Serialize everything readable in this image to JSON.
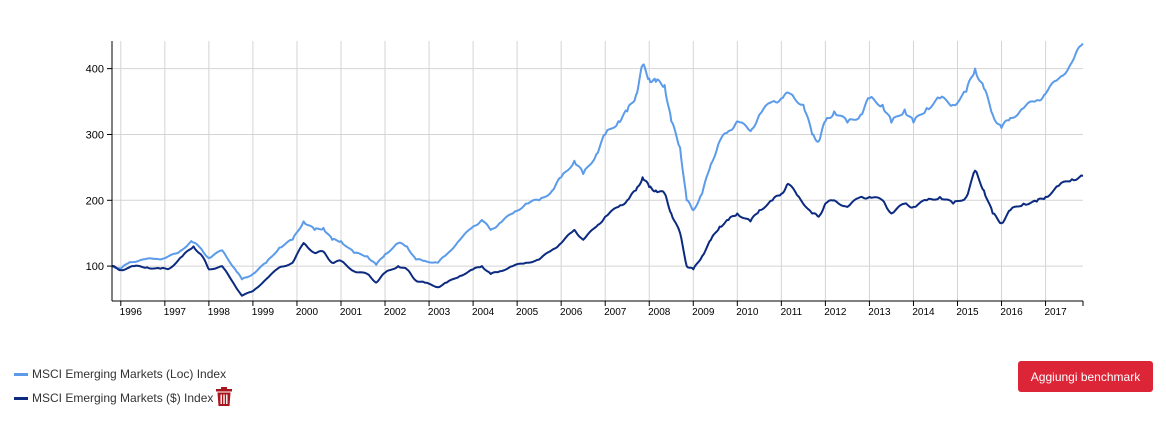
{
  "chart_data": {
    "type": "line",
    "title": "",
    "xlabel": "",
    "ylabel": "",
    "x_ticks": [
      "1996",
      "1997",
      "1998",
      "1999",
      "2000",
      "2001",
      "2002",
      "2003",
      "2004",
      "2005",
      "2006",
      "2007",
      "2008",
      "2009",
      "2010",
      "2011",
      "2012",
      "2013",
      "2014",
      "2015",
      "2016",
      "2017"
    ],
    "xlim": [
      1995.8,
      2017.85
    ],
    "ylim": [
      47,
      442
    ],
    "y_ticks": [
      100,
      200,
      300,
      400
    ],
    "grid": true,
    "legend_position": "bottom-left",
    "series": [
      {
        "name": "MSCI Emerging Markets (Loc) Index",
        "color": "#5b9bea",
        "points": [
          [
            1995.8,
            100
          ],
          [
            1996.0,
            96
          ],
          [
            1996.2,
            106
          ],
          [
            1996.5,
            110
          ],
          [
            1996.8,
            111
          ],
          [
            1997.0,
            112
          ],
          [
            1997.3,
            120
          ],
          [
            1997.6,
            138
          ],
          [
            1997.8,
            128
          ],
          [
            1998.0,
            112
          ],
          [
            1998.3,
            124
          ],
          [
            1998.6,
            95
          ],
          [
            1998.75,
            80
          ],
          [
            1999.0,
            88
          ],
          [
            1999.3,
            105
          ],
          [
            1999.6,
            128
          ],
          [
            1999.9,
            140
          ],
          [
            2000.15,
            168
          ],
          [
            2000.4,
            155
          ],
          [
            2000.6,
            158
          ],
          [
            2000.8,
            140
          ],
          [
            2001.0,
            138
          ],
          [
            2001.3,
            120
          ],
          [
            2001.6,
            115
          ],
          [
            2001.8,
            102
          ],
          [
            2002.0,
            118
          ],
          [
            2002.3,
            135
          ],
          [
            2002.5,
            130
          ],
          [
            2002.7,
            110
          ],
          [
            2002.9,
            108
          ],
          [
            2003.2,
            105
          ],
          [
            2003.4,
            118
          ],
          [
            2003.7,
            140
          ],
          [
            2004.0,
            160
          ],
          [
            2004.2,
            170
          ],
          [
            2004.4,
            155
          ],
          [
            2004.6,
            165
          ],
          [
            2004.9,
            180
          ],
          [
            2005.2,
            195
          ],
          [
            2005.5,
            200
          ],
          [
            2005.8,
            215
          ],
          [
            2006.0,
            235
          ],
          [
            2006.3,
            260
          ],
          [
            2006.5,
            240
          ],
          [
            2006.8,
            270
          ],
          [
            2007.0,
            300
          ],
          [
            2007.3,
            320
          ],
          [
            2007.5,
            335
          ],
          [
            2007.7,
            360
          ],
          [
            2007.85,
            405
          ],
          [
            2008.0,
            385
          ],
          [
            2008.15,
            380
          ],
          [
            2008.35,
            375
          ],
          [
            2008.5,
            320
          ],
          [
            2008.7,
            280
          ],
          [
            2008.85,
            200
          ],
          [
            2009.0,
            185
          ],
          [
            2009.2,
            210
          ],
          [
            2009.4,
            255
          ],
          [
            2009.6,
            290
          ],
          [
            2009.8,
            305
          ],
          [
            2010.0,
            320
          ],
          [
            2010.3,
            305
          ],
          [
            2010.5,
            330
          ],
          [
            2010.8,
            350
          ],
          [
            2011.0,
            355
          ],
          [
            2011.2,
            362
          ],
          [
            2011.5,
            345
          ],
          [
            2011.7,
            300
          ],
          [
            2011.85,
            290
          ],
          [
            2012.0,
            320
          ],
          [
            2012.2,
            335
          ],
          [
            2012.5,
            318
          ],
          [
            2012.8,
            330
          ],
          [
            2013.0,
            355
          ],
          [
            2013.3,
            345
          ],
          [
            2013.5,
            318
          ],
          [
            2013.8,
            338
          ],
          [
            2014.0,
            318
          ],
          [
            2014.3,
            340
          ],
          [
            2014.6,
            355
          ],
          [
            2014.9,
            345
          ],
          [
            2015.2,
            365
          ],
          [
            2015.4,
            400
          ],
          [
            2015.6,
            370
          ],
          [
            2015.8,
            330
          ],
          [
            2016.0,
            310
          ],
          [
            2016.2,
            325
          ],
          [
            2016.5,
            340
          ],
          [
            2016.8,
            352
          ],
          [
            2017.0,
            362
          ],
          [
            2017.3,
            385
          ],
          [
            2017.6,
            410
          ],
          [
            2017.85,
            438
          ]
        ]
      },
      {
        "name": "MSCI Emerging Markets ($) Index",
        "color": "#0b2a80",
        "points": [
          [
            1995.8,
            100
          ],
          [
            1996.0,
            94
          ],
          [
            1996.3,
            100
          ],
          [
            1996.6,
            98
          ],
          [
            1996.9,
            96
          ],
          [
            1997.1,
            96
          ],
          [
            1997.4,
            115
          ],
          [
            1997.65,
            130
          ],
          [
            1997.85,
            115
          ],
          [
            1998.0,
            95
          ],
          [
            1998.3,
            100
          ],
          [
            1998.55,
            75
          ],
          [
            1998.75,
            55
          ],
          [
            1999.0,
            62
          ],
          [
            1999.3,
            80
          ],
          [
            1999.6,
            98
          ],
          [
            1999.9,
            105
          ],
          [
            2000.15,
            135
          ],
          [
            2000.4,
            120
          ],
          [
            2000.6,
            122
          ],
          [
            2000.8,
            105
          ],
          [
            2001.0,
            108
          ],
          [
            2001.3,
            92
          ],
          [
            2001.6,
            88
          ],
          [
            2001.8,
            75
          ],
          [
            2002.0,
            90
          ],
          [
            2002.3,
            100
          ],
          [
            2002.5,
            95
          ],
          [
            2002.7,
            78
          ],
          [
            2002.9,
            75
          ],
          [
            2003.2,
            68
          ],
          [
            2003.4,
            75
          ],
          [
            2003.7,
            85
          ],
          [
            2004.0,
            95
          ],
          [
            2004.2,
            100
          ],
          [
            2004.4,
            88
          ],
          [
            2004.6,
            92
          ],
          [
            2004.9,
            100
          ],
          [
            2005.2,
            105
          ],
          [
            2005.5,
            110
          ],
          [
            2005.8,
            125
          ],
          [
            2006.0,
            135
          ],
          [
            2006.3,
            155
          ],
          [
            2006.5,
            140
          ],
          [
            2006.8,
            160
          ],
          [
            2007.0,
            175
          ],
          [
            2007.3,
            190
          ],
          [
            2007.5,
            200
          ],
          [
            2007.7,
            215
          ],
          [
            2007.85,
            235
          ],
          [
            2008.0,
            220
          ],
          [
            2008.15,
            215
          ],
          [
            2008.35,
            210
          ],
          [
            2008.5,
            180
          ],
          [
            2008.7,
            150
          ],
          [
            2008.85,
            100
          ],
          [
            2009.0,
            95
          ],
          [
            2009.2,
            115
          ],
          [
            2009.4,
            140
          ],
          [
            2009.6,
            160
          ],
          [
            2009.8,
            170
          ],
          [
            2010.0,
            180
          ],
          [
            2010.3,
            168
          ],
          [
            2010.5,
            185
          ],
          [
            2010.8,
            200
          ],
          [
            2011.0,
            210
          ],
          [
            2011.15,
            225
          ],
          [
            2011.4,
            205
          ],
          [
            2011.7,
            180
          ],
          [
            2011.85,
            175
          ],
          [
            2012.0,
            195
          ],
          [
            2012.2,
            200
          ],
          [
            2012.5,
            190
          ],
          [
            2012.8,
            205
          ],
          [
            2013.0,
            205
          ],
          [
            2013.3,
            200
          ],
          [
            2013.5,
            180
          ],
          [
            2013.8,
            195
          ],
          [
            2014.0,
            190
          ],
          [
            2014.3,
            200
          ],
          [
            2014.6,
            205
          ],
          [
            2014.9,
            195
          ],
          [
            2015.2,
            205
          ],
          [
            2015.4,
            245
          ],
          [
            2015.6,
            215
          ],
          [
            2015.8,
            180
          ],
          [
            2016.0,
            165
          ],
          [
            2016.2,
            185
          ],
          [
            2016.5,
            195
          ],
          [
            2016.8,
            198
          ],
          [
            2017.0,
            205
          ],
          [
            2017.3,
            222
          ],
          [
            2017.6,
            232
          ],
          [
            2017.85,
            237
          ]
        ]
      }
    ]
  },
  "legend": {
    "loc_label": "MSCI Emerging Markets (Loc) Index",
    "usd_label": "MSCI Emerging Markets ($) Index",
    "delete_icon": "trash-icon"
  },
  "actions": {
    "add_benchmark_label": "Aggiungi benchmark"
  },
  "colors": {
    "button_bg": "#dc2536",
    "trash": "#a8151c"
  }
}
